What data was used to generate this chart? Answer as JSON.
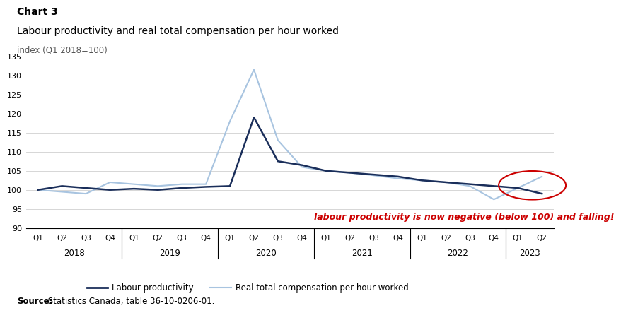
{
  "chart_label": "Chart 3",
  "title": "Labour productivity and real total compensation per hour worked",
  "subtitle": "index (Q1 2018=100)",
  "source_bold": "Source:",
  "source_rest": " Statistics Canada, table 36-10-0206-01.",
  "annotation": "labour productivity is now negative (below 100) and falling!",
  "ylim": [
    90,
    135
  ],
  "yticks": [
    90,
    95,
    100,
    105,
    110,
    115,
    120,
    125,
    130,
    135
  ],
  "labour_productivity": [
    100.0,
    101.0,
    100.5,
    100.0,
    100.3,
    100.0,
    100.5,
    100.8,
    101.0,
    119.0,
    107.5,
    106.5,
    105.0,
    104.5,
    104.0,
    103.5,
    102.5,
    102.0,
    101.5,
    101.0,
    100.5,
    99.0
  ],
  "real_compensation": [
    100.0,
    99.5,
    99.0,
    102.0,
    101.5,
    101.0,
    101.5,
    101.5,
    118.0,
    131.5,
    113.0,
    106.0,
    105.0,
    104.5,
    103.8,
    103.0,
    102.5,
    102.0,
    101.0,
    97.5,
    100.5,
    103.5
  ],
  "n_points": 22,
  "lp_color": "#1a2e5a",
  "rc_color": "#a8c4e0",
  "lp_label": "Labour productivity",
  "rc_label": "Real total compensation per hour worked",
  "annotation_color": "#cc0000",
  "ellipse_color": "#cc0000",
  "year_groups": [
    {
      "start": 0,
      "end": 3,
      "label": "2018"
    },
    {
      "start": 4,
      "end": 7,
      "label": "2019"
    },
    {
      "start": 8,
      "end": 11,
      "label": "2020"
    },
    {
      "start": 12,
      "end": 15,
      "label": "2021"
    },
    {
      "start": 16,
      "end": 19,
      "label": "2022"
    },
    {
      "start": 20,
      "end": 21,
      "label": "2023"
    }
  ],
  "divider_positions": [
    3.5,
    7.5,
    11.5,
    15.5,
    19.5
  ],
  "quarter_labels": [
    "Q1",
    "Q2",
    "Q3",
    "Q4",
    "Q1",
    "Q2",
    "Q3",
    "Q4",
    "Q1",
    "Q2",
    "Q3",
    "Q4",
    "Q1",
    "Q2",
    "Q3",
    "Q4",
    "Q1",
    "Q2",
    "Q3",
    "Q4",
    "Q1",
    "Q2"
  ]
}
